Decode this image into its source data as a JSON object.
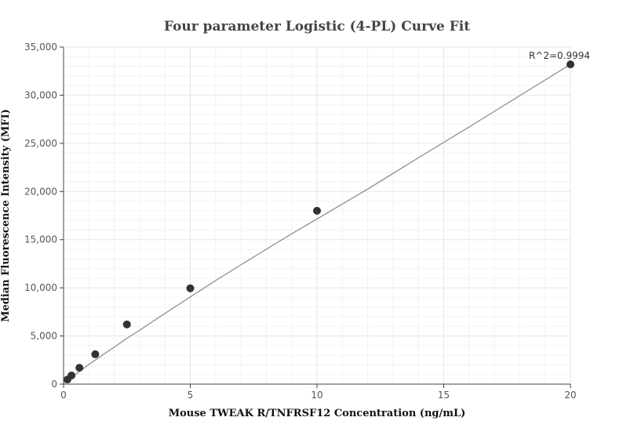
{
  "chart_data": {
    "type": "scatter",
    "title": "Four parameter Logistic (4-PL) Curve Fit",
    "xlabel": "Mouse TWEAK R/TNFRSF12 Concentration (ng/mL)",
    "ylabel": "Median Fluorescence Intensity (MFI)",
    "xlim": [
      0,
      20
    ],
    "ylim": [
      0,
      35000
    ],
    "x_ticks": [
      0,
      5,
      10,
      15,
      20
    ],
    "x_tick_labels": [
      "0",
      "5",
      "10",
      "15",
      "20"
    ],
    "y_ticks": [
      0,
      5000,
      10000,
      15000,
      20000,
      25000,
      30000,
      35000
    ],
    "y_tick_labels": [
      "0",
      "5,000",
      "10,000",
      "15,000",
      "20,000",
      "25,000",
      "30,000",
      "35,000"
    ],
    "grid": true,
    "series": [
      {
        "points": [
          {
            "x": 0.156,
            "y": 480
          },
          {
            "x": 0.3125,
            "y": 900
          },
          {
            "x": 0.625,
            "y": 1700
          },
          {
            "x": 1.25,
            "y": 3100
          },
          {
            "x": 2.5,
            "y": 6200
          },
          {
            "x": 5,
            "y": 9950
          },
          {
            "x": 10,
            "y": 18000
          },
          {
            "x": 20,
            "y": 33200
          }
        ]
      }
    ],
    "fit_curve": {
      "x": [
        0,
        0.5,
        1,
        1.5,
        2,
        2.5,
        3,
        4,
        5,
        6,
        7,
        8,
        9,
        10,
        12,
        14,
        16,
        18,
        20
      ],
      "y": [
        80,
        1060,
        2040,
        2950,
        3850,
        4750,
        5600,
        7350,
        9050,
        10750,
        12400,
        14000,
        15600,
        17150,
        20250,
        23500,
        26700,
        29950,
        33200
      ]
    },
    "annotation": {
      "text": "R^2=0.9994",
      "x": 20,
      "y": 33200
    },
    "colors": {
      "point": "#333333",
      "curve": "#888888",
      "grid": "#e6e6e6"
    }
  }
}
